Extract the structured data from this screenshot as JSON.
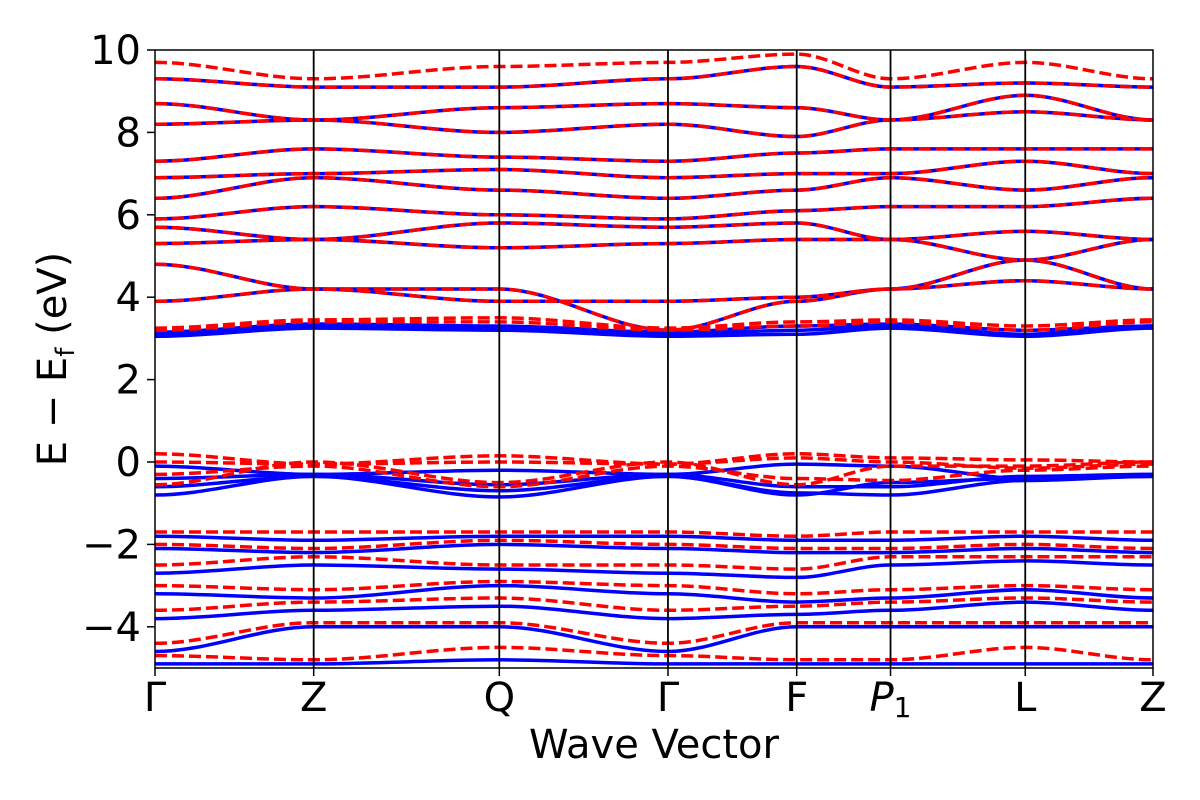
{
  "chart_data": {
    "type": "line",
    "xlabel": "Wave Vector",
    "ylabel_main": "E − E",
    "ylabel_sub": "f",
    "ylabel_unit": " (eV)",
    "ylim": [
      -5,
      10
    ],
    "yticks": [
      -4,
      -2,
      0,
      2,
      4,
      6,
      8,
      10
    ],
    "ytick_labels": [
      "−4",
      "−2",
      "0",
      "2",
      "4",
      "6",
      "8",
      "10"
    ],
    "kpath": [
      {
        "label": "Γ",
        "sub": "",
        "pos": 0.0
      },
      {
        "label": "Z",
        "sub": "",
        "pos": 0.159
      },
      {
        "label": "Q",
        "sub": "",
        "pos": 0.345
      },
      {
        "label": "Γ",
        "sub": "",
        "pos": 0.514
      },
      {
        "label": "F",
        "sub": "",
        "pos": 0.643
      },
      {
        "label": "P",
        "sub": "1",
        "pos": 0.737
      },
      {
        "label": "L",
        "sub": "",
        "pos": 0.872
      },
      {
        "label": "Z",
        "sub": "",
        "pos": 1.0
      }
    ],
    "grid": "vertical lines at high-symmetry points",
    "series": [
      {
        "style": "solid",
        "color": "#0000ff",
        "bands": [
          [
            -0.8,
            -0.35,
            -0.7,
            -0.35,
            -0.8,
            -0.5,
            -0.4,
            -0.35
          ],
          [
            -0.6,
            -0.35,
            -0.85,
            -0.35,
            -0.75,
            -0.8,
            -0.45,
            -0.35
          ],
          [
            -0.4,
            -0.3,
            -0.55,
            -0.3,
            -0.6,
            -0.6,
            -0.35,
            -0.3
          ],
          [
            -0.1,
            -0.3,
            -0.2,
            -0.3,
            -0.05,
            -0.1,
            -0.4,
            -0.3
          ],
          [
            3.05,
            3.25,
            3.2,
            3.05,
            3.1,
            3.25,
            3.05,
            3.25
          ],
          [
            3.1,
            3.3,
            3.25,
            3.1,
            3.2,
            3.3,
            3.1,
            3.3
          ],
          [
            3.15,
            3.35,
            3.3,
            3.15,
            3.3,
            3.35,
            3.2,
            3.3
          ],
          [
            3.9,
            4.2,
            3.9,
            3.9,
            4.0,
            4.2,
            4.4,
            4.2
          ],
          [
            4.8,
            4.2,
            4.2,
            3.2,
            3.9,
            4.2,
            4.9,
            4.2
          ],
          [
            5.3,
            5.4,
            5.2,
            5.3,
            5.4,
            5.4,
            4.9,
            5.4
          ],
          [
            5.7,
            5.4,
            5.8,
            5.7,
            5.8,
            5.4,
            5.6,
            5.4
          ],
          [
            5.9,
            6.2,
            6.0,
            5.9,
            6.1,
            6.2,
            6.2,
            6.4
          ],
          [
            6.4,
            6.9,
            6.6,
            6.4,
            6.6,
            6.9,
            6.6,
            6.9
          ],
          [
            6.9,
            7.0,
            7.1,
            6.9,
            7.0,
            7.0,
            7.3,
            7.0
          ],
          [
            7.3,
            7.6,
            7.4,
            7.3,
            7.5,
            7.6,
            7.6,
            7.6
          ],
          [
            8.2,
            8.3,
            8.0,
            8.2,
            7.9,
            8.3,
            8.5,
            8.3
          ],
          [
            8.7,
            8.3,
            8.6,
            8.7,
            8.6,
            8.3,
            8.9,
            8.3
          ],
          [
            9.3,
            9.1,
            9.1,
            9.3,
            9.6,
            9.1,
            9.2,
            9.1
          ],
          [
            -1.8,
            -1.9,
            -1.8,
            -1.8,
            -1.9,
            -1.9,
            -1.8,
            -1.9
          ],
          [
            -2.1,
            -2.2,
            -2.0,
            -2.1,
            -2.2,
            -2.2,
            -2.1,
            -2.2
          ],
          [
            -2.7,
            -2.5,
            -2.6,
            -2.7,
            -2.8,
            -2.5,
            -2.4,
            -2.5
          ],
          [
            -3.2,
            -3.3,
            -3.0,
            -3.2,
            -3.4,
            -3.3,
            -3.1,
            -3.3
          ],
          [
            -3.8,
            -3.6,
            -3.5,
            -3.8,
            -3.7,
            -3.6,
            -3.4,
            -3.6
          ],
          [
            -4.6,
            -4.0,
            -4.0,
            -4.6,
            -4.0,
            -4.0,
            -4.0,
            -4.0
          ],
          [
            -4.9,
            -4.9,
            -4.8,
            -4.9,
            -4.9,
            -4.9,
            -4.9,
            -4.9
          ]
        ]
      },
      {
        "style": "dashed",
        "color": "#ff0000",
        "bands": [
          [
            -0.55,
            0.0,
            -0.5,
            0.0,
            -0.55,
            -0.1,
            -0.1,
            0.0
          ],
          [
            -0.3,
            -0.1,
            -0.6,
            -0.1,
            -0.4,
            -0.45,
            -0.2,
            -0.1
          ],
          [
            0.0,
            -0.05,
            0.0,
            -0.05,
            0.1,
            0.0,
            -0.15,
            -0.05
          ],
          [
            0.2,
            -0.05,
            0.15,
            -0.05,
            0.2,
            0.1,
            0.05,
            0.0
          ],
          [
            3.2,
            3.4,
            3.4,
            3.2,
            3.3,
            3.4,
            3.2,
            3.4
          ],
          [
            3.25,
            3.45,
            3.5,
            3.25,
            3.4,
            3.45,
            3.3,
            3.45
          ],
          [
            3.9,
            4.2,
            3.9,
            3.9,
            4.0,
            4.2,
            4.4,
            4.2
          ],
          [
            4.8,
            4.2,
            4.2,
            3.2,
            3.9,
            4.2,
            4.9,
            4.2
          ],
          [
            5.3,
            5.4,
            5.2,
            5.3,
            5.4,
            5.4,
            4.9,
            5.4
          ],
          [
            5.7,
            5.4,
            5.8,
            5.7,
            5.8,
            5.4,
            5.6,
            5.4
          ],
          [
            5.9,
            6.2,
            6.0,
            5.9,
            6.1,
            6.2,
            6.2,
            6.4
          ],
          [
            6.4,
            6.9,
            6.6,
            6.4,
            6.6,
            6.9,
            6.6,
            6.9
          ],
          [
            6.9,
            7.0,
            7.1,
            6.9,
            7.0,
            7.0,
            7.3,
            7.0
          ],
          [
            7.3,
            7.6,
            7.4,
            7.3,
            7.5,
            7.6,
            7.6,
            7.6
          ],
          [
            8.2,
            8.3,
            8.0,
            8.2,
            7.9,
            8.3,
            8.5,
            8.3
          ],
          [
            8.7,
            8.3,
            8.6,
            8.7,
            8.6,
            8.3,
            8.9,
            8.3
          ],
          [
            9.3,
            9.1,
            9.1,
            9.3,
            9.6,
            9.1,
            9.2,
            9.1
          ],
          [
            9.7,
            9.3,
            9.6,
            9.7,
            9.9,
            9.3,
            9.7,
            9.3
          ],
          [
            -1.7,
            -1.7,
            -1.7,
            -1.7,
            -1.8,
            -1.7,
            -1.7,
            -1.7
          ],
          [
            -2.0,
            -2.1,
            -1.9,
            -2.0,
            -2.1,
            -2.1,
            -2.0,
            -2.1
          ],
          [
            -2.5,
            -2.3,
            -2.5,
            -2.5,
            -2.6,
            -2.3,
            -2.3,
            -2.3
          ],
          [
            -3.0,
            -3.1,
            -2.9,
            -3.0,
            -3.2,
            -3.1,
            -3.0,
            -3.1
          ],
          [
            -3.6,
            -3.4,
            -3.3,
            -3.6,
            -3.5,
            -3.4,
            -3.3,
            -3.4
          ],
          [
            -4.4,
            -3.9,
            -3.9,
            -4.4,
            -3.9,
            -3.9,
            -3.9,
            -3.9
          ],
          [
            -4.7,
            -4.8,
            -4.5,
            -4.7,
            -4.8,
            -4.8,
            -4.5,
            -4.8
          ]
        ]
      }
    ]
  }
}
